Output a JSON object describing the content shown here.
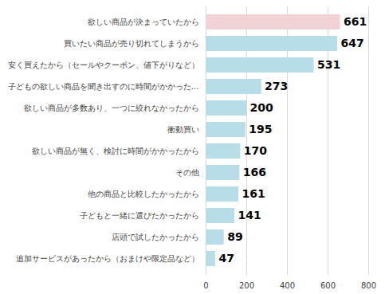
{
  "chart_data": {
    "type": "bar",
    "orientation": "horizontal",
    "categories": [
      "欲しい商品が決まっていたから",
      "買いたい商品が売り切れてしまうから",
      "安く買えたから（セールやクーポン、値下がりなど）",
      "子どもの欲しい商品を聞き出すのに時間がかかった…",
      "欲しい商品が多数あり、一つに絞れなかったから",
      "衝動買い",
      "欲しい商品が無く、検討に時間がかかったから",
      "その他",
      "他の商品と比較したかったから",
      "子どもと一緒に選びたかったから",
      "店頭で試したかったから",
      "追加サービスがあったから（おまけや限定品など）"
    ],
    "values": [
      661,
      647,
      531,
      273,
      200,
      195,
      170,
      166,
      161,
      141,
      89,
      47
    ],
    "colors": [
      "#f2d3d5",
      "#b6dde8",
      "#b6dde8",
      "#b6dde8",
      "#b6dde8",
      "#b6dde8",
      "#b6dde8",
      "#b6dde8",
      "#b6dde8",
      "#b6dde8",
      "#b6dde8",
      "#b6dde8"
    ],
    "xlim": [
      0,
      800
    ],
    "xticks": [
      0,
      200,
      400,
      600,
      800
    ],
    "grid": true,
    "data_labels": true
  }
}
